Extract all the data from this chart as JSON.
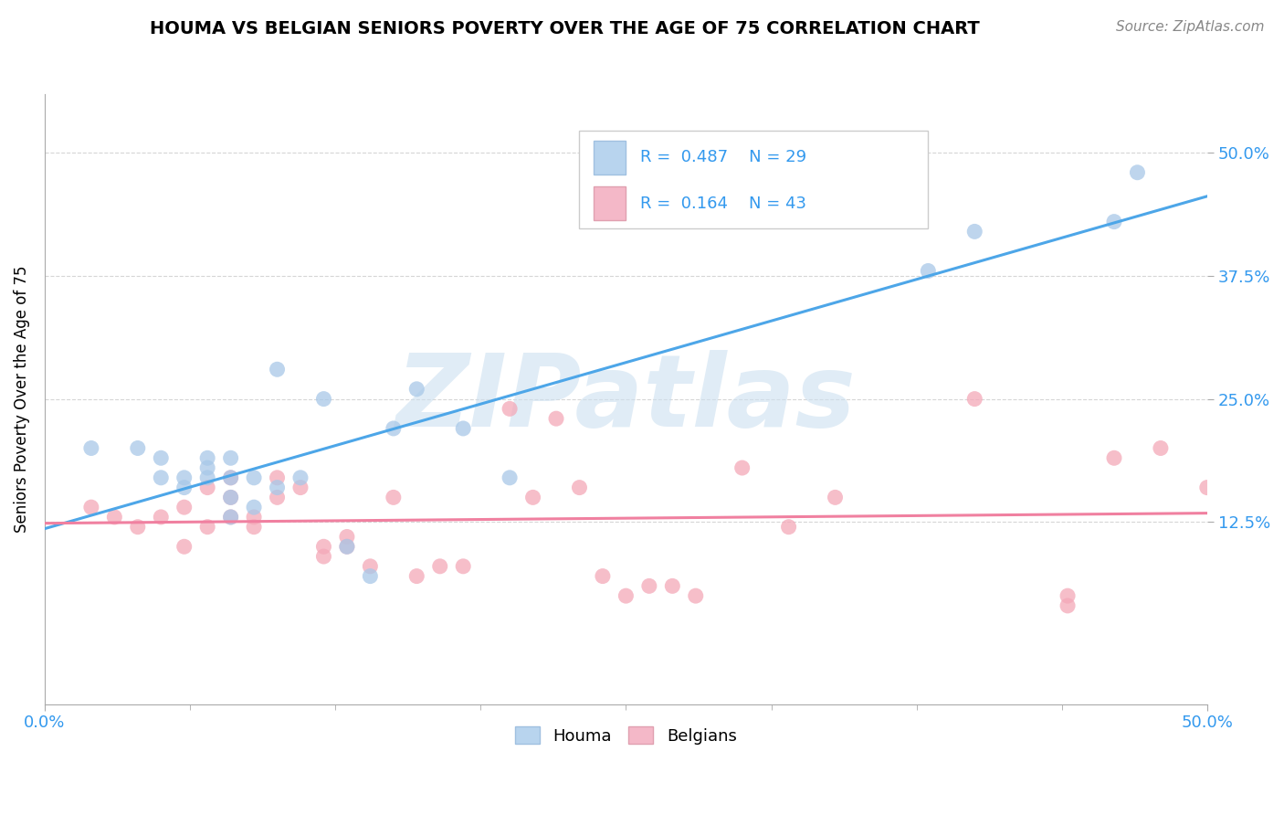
{
  "title": "HOUMA VS BELGIAN SENIORS POVERTY OVER THE AGE OF 75 CORRELATION CHART",
  "source_text": "Source: ZipAtlas.com",
  "ylabel": "Seniors Poverty Over the Age of 75",
  "xlim": [
    0.0,
    0.5
  ],
  "ylim": [
    -0.06,
    0.56
  ],
  "ytick_labels": [
    "12.5%",
    "25.0%",
    "37.5%",
    "50.0%"
  ],
  "ytick_values": [
    0.125,
    0.25,
    0.375,
    0.5
  ],
  "houma_color": "#a8c8e8",
  "houma_edge_color": "#90b8d8",
  "belgian_color": "#f4a8b8",
  "belgian_edge_color": "#e090a0",
  "houma_line_color": "#4da6e8",
  "belgian_line_color": "#f080a0",
  "legend_houma_color": "#b8d4ee",
  "legend_belgian_color": "#f4b8c8",
  "houma_R": 0.487,
  "houma_N": 29,
  "belgian_R": 0.164,
  "belgian_N": 43,
  "watermark": "ZIPatlas",
  "watermark_color": "#cce0f0",
  "background_color": "#ffffff",
  "grid_color": "#cccccc",
  "text_color": "#3399ee",
  "houma_x": [
    0.02,
    0.04,
    0.05,
    0.05,
    0.06,
    0.06,
    0.07,
    0.07,
    0.07,
    0.08,
    0.08,
    0.08,
    0.08,
    0.09,
    0.09,
    0.1,
    0.1,
    0.11,
    0.12,
    0.13,
    0.14,
    0.15,
    0.16,
    0.18,
    0.2,
    0.38,
    0.4,
    0.46,
    0.47
  ],
  "houma_y": [
    0.2,
    0.2,
    0.17,
    0.19,
    0.16,
    0.17,
    0.17,
    0.18,
    0.19,
    0.13,
    0.15,
    0.17,
    0.19,
    0.14,
    0.17,
    0.16,
    0.28,
    0.17,
    0.25,
    0.1,
    0.07,
    0.22,
    0.26,
    0.22,
    0.17,
    0.38,
    0.42,
    0.43,
    0.48
  ],
  "belgian_x": [
    0.02,
    0.03,
    0.04,
    0.05,
    0.06,
    0.06,
    0.07,
    0.07,
    0.08,
    0.08,
    0.08,
    0.09,
    0.09,
    0.1,
    0.1,
    0.11,
    0.12,
    0.12,
    0.13,
    0.13,
    0.14,
    0.15,
    0.16,
    0.17,
    0.18,
    0.2,
    0.21,
    0.22,
    0.23,
    0.24,
    0.25,
    0.26,
    0.27,
    0.28,
    0.3,
    0.32,
    0.34,
    0.4,
    0.44,
    0.44,
    0.46,
    0.48,
    0.5
  ],
  "belgian_y": [
    0.14,
    0.13,
    0.12,
    0.13,
    0.1,
    0.14,
    0.12,
    0.16,
    0.13,
    0.15,
    0.17,
    0.12,
    0.13,
    0.15,
    0.17,
    0.16,
    0.09,
    0.1,
    0.1,
    0.11,
    0.08,
    0.15,
    0.07,
    0.08,
    0.08,
    0.24,
    0.15,
    0.23,
    0.16,
    0.07,
    0.05,
    0.06,
    0.06,
    0.05,
    0.18,
    0.12,
    0.15,
    0.25,
    0.04,
    0.05,
    0.19,
    0.2,
    0.16
  ]
}
